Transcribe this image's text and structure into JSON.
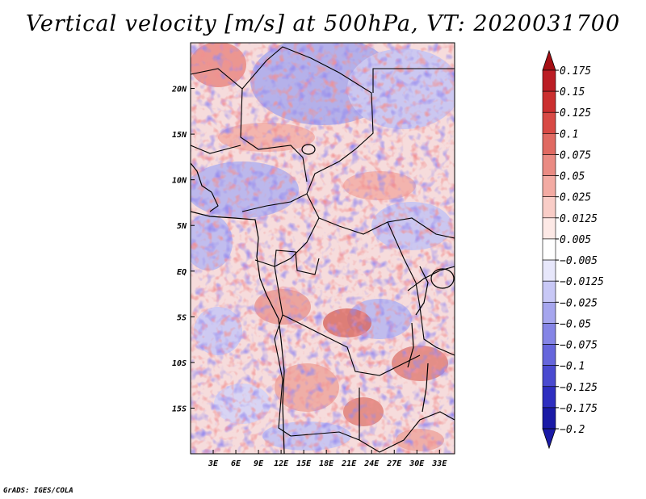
{
  "title": "Vertical velocity [m/s] at 500hPa, VT: 2020031700",
  "credit": "GrADS: IGES/COLA",
  "map": {
    "region": "Central Africa",
    "lon_range": [
      0,
      35
    ],
    "lat_range": [
      -20,
      25
    ],
    "lon_ticks": [
      {
        "lon": 3,
        "label": "3E"
      },
      {
        "lon": 6,
        "label": "6E"
      },
      {
        "lon": 9,
        "label": "9E"
      },
      {
        "lon": 12,
        "label": "12E"
      },
      {
        "lon": 15,
        "label": "15E"
      },
      {
        "lon": 18,
        "label": "18E"
      },
      {
        "lon": 21,
        "label": "21E"
      },
      {
        "lon": 24,
        "label": "24E"
      },
      {
        "lon": 27,
        "label": "27E"
      },
      {
        "lon": 30,
        "label": "30E"
      },
      {
        "lon": 33,
        "label": "33E"
      }
    ],
    "lat_ticks": [
      {
        "lat": 20,
        "label": "20N"
      },
      {
        "lat": 15,
        "label": "15N"
      },
      {
        "lat": 10,
        "label": "10N"
      },
      {
        "lat": 5,
        "label": "5N"
      },
      {
        "lat": 0,
        "label": "EQ"
      },
      {
        "lat": -5,
        "label": "5S"
      },
      {
        "lat": -10,
        "label": "10S"
      },
      {
        "lat": -15,
        "label": "15S"
      }
    ]
  },
  "colorbar": {
    "levels": [
      {
        "label": "0.175",
        "color": "#a50f15"
      },
      {
        "label": "0.15",
        "color": "#bb1d24"
      },
      {
        "label": "0.125",
        "color": "#cb2f2f"
      },
      {
        "label": "0.1",
        "color": "#d84a45"
      },
      {
        "label": "0.075",
        "color": "#e06a62"
      },
      {
        "label": "0.05",
        "color": "#ea8b83"
      },
      {
        "label": "0.025",
        "color": "#f3aba3"
      },
      {
        "label": "0.0125",
        "color": "#f9cdc7"
      },
      {
        "label": "0.005",
        "color": "#fde9e6"
      },
      {
        "label": "−0.005",
        "color": "#ffffff"
      },
      {
        "label": "−0.0125",
        "color": "#e7e7fb"
      },
      {
        "label": "−0.025",
        "color": "#c8c8f6"
      },
      {
        "label": "−0.05",
        "color": "#a6a6ee"
      },
      {
        "label": "−0.075",
        "color": "#8585e6"
      },
      {
        "label": "−0.1",
        "color": "#6666dc"
      },
      {
        "label": "−0.125",
        "color": "#4a4ad0"
      },
      {
        "label": "−0.175",
        "color": "#2e2ec0"
      },
      {
        "label": "−0.2",
        "color": "#1a1aa6"
      }
    ],
    "over_color": "#a50f15",
    "under_color": "#1a1aa6"
  }
}
